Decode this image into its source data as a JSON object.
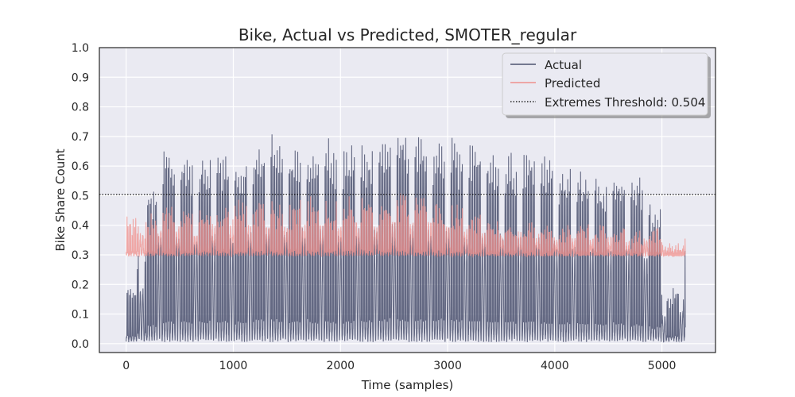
{
  "chart_data": {
    "type": "line",
    "title": "Bike, Actual vs Predicted, SMOTER_regular",
    "xlabel": "Time (samples)",
    "ylabel": "Bike Share Count",
    "xlim": [
      -250,
      5500
    ],
    "ylim": [
      -0.03,
      1.0
    ],
    "xticks": [
      0,
      1000,
      2000,
      3000,
      4000,
      5000
    ],
    "yticks": [
      0.0,
      0.1,
      0.2,
      0.3,
      0.4,
      0.5,
      0.6,
      0.7,
      0.8,
      0.9,
      1.0
    ],
    "grid": true,
    "legend_position": "top-right",
    "n_samples": 5220,
    "cycle_length": 24,
    "threshold": {
      "name": "Extremes Threshold: 0.504",
      "value": 0.504,
      "color": "#000000"
    },
    "series": [
      {
        "name": "Actual",
        "color": "#4c5270",
        "segment_width": 100,
        "min_value": 0.01,
        "peak_values": [
          0.18,
          0.3,
          0.5,
          0.63,
          0.61,
          0.62,
          0.58,
          0.6,
          0.61,
          0.6,
          0.58,
          0.62,
          0.65,
          0.67,
          0.65,
          0.62,
          0.64,
          0.6,
          0.66,
          0.62,
          0.62,
          0.64,
          0.63,
          0.66,
          0.68,
          0.69,
          0.67,
          0.66,
          0.64,
          0.66,
          0.67,
          0.62,
          0.64,
          0.62,
          0.62,
          0.61,
          0.6,
          0.62,
          0.59,
          0.6,
          0.55,
          0.56,
          0.55,
          0.55,
          0.52,
          0.55,
          0.53,
          0.53,
          0.5,
          0.43,
          0.15,
          0.18,
          0.36
        ]
      },
      {
        "name": "Predicted",
        "color": "#f0908c",
        "segment_width": 100,
        "min_value": 0.3,
        "peak_values": [
          0.44,
          0.42,
          0.43,
          0.45,
          0.46,
          0.45,
          0.44,
          0.46,
          0.47,
          0.49,
          0.48,
          0.47,
          0.49,
          0.48,
          0.47,
          0.47,
          0.48,
          0.49,
          0.49,
          0.48,
          0.48,
          0.49,
          0.49,
          0.49,
          0.49,
          0.5,
          0.49,
          0.49,
          0.49,
          0.47,
          0.47,
          0.45,
          0.44,
          0.43,
          0.43,
          0.42,
          0.42,
          0.41,
          0.41,
          0.4,
          0.4,
          0.4,
          0.4,
          0.4,
          0.4,
          0.4,
          0.39,
          0.39,
          0.39,
          0.4,
          0.36,
          0.34,
          0.38
        ]
      }
    ]
  }
}
